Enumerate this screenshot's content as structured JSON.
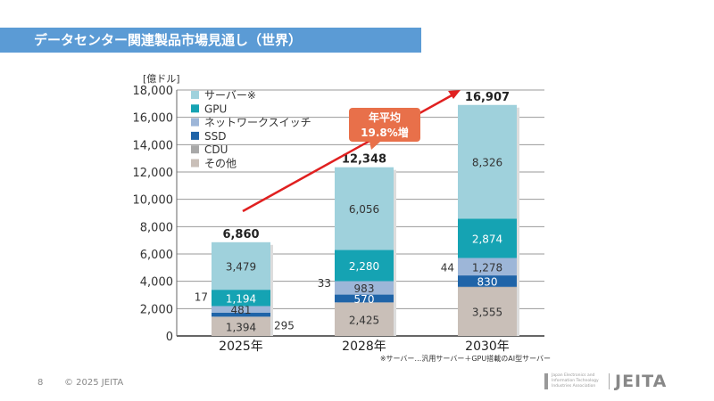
{
  "title": "データセンター関連製品市場見通し（世界）",
  "footer": {
    "page": "8",
    "copyright": "© 2025 JEITA"
  },
  "logo": {
    "text": "JEITA",
    "subtext": "Japan Electronics and Information Technology Industries Association"
  },
  "chart_data": {
    "type": "stacked-bar",
    "ylabel": "[億ドル]",
    "ylim": [
      0,
      18000
    ],
    "yticks": [
      "0",
      "2,000",
      "4,000",
      "6,000",
      "8,000",
      "10,000",
      "12,000",
      "14,000",
      "16,000",
      "18,000"
    ],
    "grid": true,
    "legend_position": "top-left",
    "categories": [
      "2025年",
      "2028年",
      "2030年"
    ],
    "totals": [
      "6,860",
      "12,348",
      "16,907"
    ],
    "series": [
      {
        "name": "その他",
        "color": "#c9bfb8",
        "values": [
          1394,
          2425,
          3555
        ],
        "labels": [
          "1,394",
          "2,425",
          "3,555"
        ]
      },
      {
        "name": "CDU",
        "color": "#a8a8a8",
        "values": [
          17,
          33,
          44
        ],
        "labels": [
          "17",
          "33",
          "44"
        ]
      },
      {
        "name": "SSD",
        "color": "#1f64a8",
        "values": [
          295,
          570,
          830
        ],
        "labels": [
          "295",
          "570",
          "830"
        ]
      },
      {
        "name": "ネットワークスイッチ",
        "color": "#9db6d8",
        "values": [
          481,
          983,
          1278
        ],
        "labels": [
          "481",
          "983",
          "1,278"
        ]
      },
      {
        "name": "GPU",
        "color": "#15a3b3",
        "values": [
          1194,
          2280,
          2874
        ],
        "labels": [
          "1,194",
          "2,280",
          "2,874"
        ]
      },
      {
        "name": "サーバー※",
        "color": "#9fd1dc",
        "values": [
          3479,
          6056,
          8326
        ],
        "labels": [
          "3,479",
          "6,056",
          "8,326"
        ]
      }
    ],
    "annotation": {
      "line1": "年平均",
      "line2": "19.8%増",
      "color": "#e8704a"
    },
    "note": "※サーバー…汎用サーバー＋GPU搭載のAI型サーバー"
  }
}
